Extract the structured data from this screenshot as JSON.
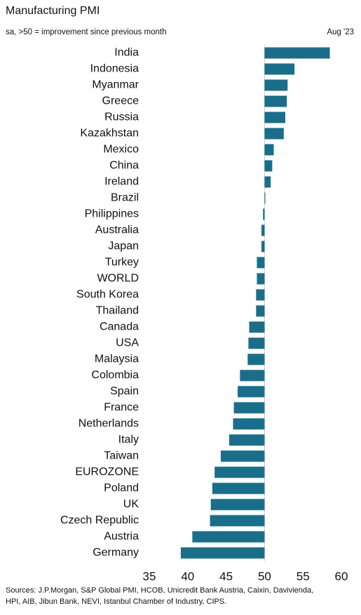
{
  "chart_data": {
    "type": "hbar",
    "title": "Manufacturing PMI",
    "subtitle": "sa, >50 = improvement since previous month",
    "date": "Aug '23",
    "sources": [
      "Sources: J.P.Morgan, S&P Global PMI, HCOB, Unicredit Bank Austria, Caixin, Davivienda,",
      "HPI, AIB, Jibun Bank, NEVI, Istanbul Chamber of Industry, CIPS."
    ],
    "categories": [
      "India",
      "Indonesia",
      "Myanmar",
      "Greece",
      "Russia",
      "Kazakhstan",
      "Mexico",
      "China",
      "Ireland",
      "Brazil",
      "Philippines",
      "Australia",
      "Japan",
      "Turkey",
      "WORLD",
      "South Korea",
      "Thailand",
      "Canada",
      "USA",
      "Malaysia",
      "Colombia",
      "Spain",
      "France",
      "Netherlands",
      "Italy",
      "Taiwan",
      "EUROZONE",
      "Poland",
      "UK",
      "Czech Republic",
      "Austria",
      "Germany"
    ],
    "values": [
      58.5,
      53.9,
      53.0,
      52.9,
      52.7,
      52.5,
      51.2,
      51.0,
      50.8,
      50.1,
      49.8,
      49.6,
      49.6,
      49.0,
      49.0,
      48.9,
      48.9,
      48.0,
      47.9,
      47.8,
      46.8,
      46.5,
      46.0,
      45.9,
      45.4,
      44.3,
      43.5,
      43.2,
      43.0,
      42.9,
      40.6,
      39.1
    ],
    "color": "#1a6e8a",
    "reference_line": 50,
    "xlim": [
      35,
      60
    ],
    "xticks": [
      35,
      40,
      45,
      50,
      55,
      60
    ]
  }
}
